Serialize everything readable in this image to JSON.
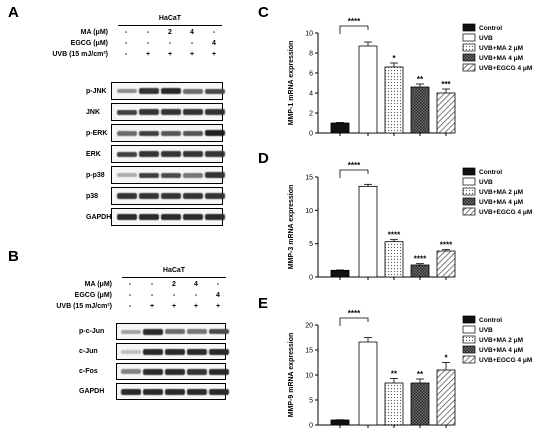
{
  "panels": {
    "A": "A",
    "B": "B",
    "C": "C",
    "D": "D",
    "E": "E"
  },
  "blot_a": {
    "cell_line": "HaCaT",
    "conditions": [
      {
        "label": "MA (μM)",
        "symbols": [
          "-",
          "-",
          "2",
          "4",
          "-"
        ]
      },
      {
        "label": "EGCG (μM)",
        "symbols": [
          "-",
          "-",
          "-",
          "-",
          "4"
        ]
      },
      {
        "label": "UVB (15 mJ/cm²)",
        "symbols": [
          "-",
          "+",
          "+",
          "+",
          "+"
        ]
      }
    ],
    "rows": [
      {
        "label": "p-JNK",
        "intensity": [
          0.45,
          0.85,
          0.9,
          0.6,
          0.75
        ]
      },
      {
        "label": "JNK",
        "intensity": [
          0.8,
          0.85,
          0.85,
          0.85,
          0.85
        ]
      },
      {
        "label": "p-ERK",
        "intensity": [
          0.6,
          0.8,
          0.7,
          0.7,
          0.95
        ]
      },
      {
        "label": "ERK",
        "intensity": [
          0.8,
          0.85,
          0.85,
          0.85,
          0.85
        ]
      },
      {
        "label": "p-p38",
        "intensity": [
          0.3,
          0.8,
          0.75,
          0.55,
          0.85
        ]
      },
      {
        "label": "p38",
        "intensity": [
          0.85,
          0.85,
          0.85,
          0.85,
          0.85
        ]
      },
      {
        "label": "GAPDH",
        "intensity": [
          0.9,
          0.9,
          0.9,
          0.9,
          0.9
        ]
      }
    ]
  },
  "blot_b": {
    "cell_line": "HaCaT",
    "conditions": [
      {
        "label": "MA (μM)",
        "symbols": [
          "-",
          "-",
          "2",
          "4",
          "-"
        ]
      },
      {
        "label": "EGCG (μM)",
        "symbols": [
          "-",
          "-",
          "-",
          "-",
          "4"
        ]
      },
      {
        "label": "UVB (15 mJ/cm²)",
        "symbols": [
          "-",
          "+",
          "+",
          "+",
          "+"
        ]
      }
    ],
    "rows": [
      {
        "label": "p-c-Jun",
        "intensity": [
          0.35,
          0.9,
          0.6,
          0.55,
          0.75
        ]
      },
      {
        "label": "c-Jun",
        "intensity": [
          0.2,
          0.9,
          0.9,
          0.9,
          0.9
        ]
      },
      {
        "label": "c-Fos",
        "intensity": [
          0.5,
          0.9,
          0.9,
          0.85,
          0.9
        ]
      },
      {
        "label": "GAPDH",
        "intensity": [
          0.9,
          0.9,
          0.9,
          0.9,
          0.9
        ]
      }
    ]
  },
  "legend": [
    "Control",
    "UVB",
    "UVB+MA 2 μM",
    "UVB+MA 4 μM",
    "UVB+EGCG 4 μM"
  ],
  "chart_data": [
    {
      "type": "bar",
      "ylabel": "MMP-1 mRNA expression",
      "ylim": [
        0,
        10
      ],
      "yticks": [
        0,
        2,
        4,
        6,
        8,
        10
      ],
      "categories": [
        "Control",
        "UVB",
        "UVB+MA 2 μM",
        "UVB+MA 4 μM",
        "UVB+EGCG 4 μM"
      ],
      "values": [
        1.0,
        8.7,
        6.6,
        4.6,
        4.0
      ],
      "errors": [
        0.05,
        0.4,
        0.4,
        0.3,
        0.4
      ],
      "significance": [
        "",
        "",
        "*",
        "**",
        "***"
      ],
      "bracket_label": "****"
    },
    {
      "type": "bar",
      "ylabel": "MMP-3 mRNA expression",
      "ylim": [
        0,
        15
      ],
      "yticks": [
        0,
        5,
        10,
        15
      ],
      "categories": [
        "Control",
        "UVB",
        "UVB+MA 2 μM",
        "UVB+MA 4 μM",
        "UVB+EGCG 4 μM"
      ],
      "values": [
        1.0,
        13.6,
        5.3,
        1.8,
        3.9
      ],
      "errors": [
        0.05,
        0.3,
        0.3,
        0.2,
        0.2
      ],
      "significance": [
        "",
        "",
        "****",
        "****",
        "****"
      ],
      "bracket_label": "****"
    },
    {
      "type": "bar",
      "ylabel": "MMP-9 mRNA expression",
      "ylim": [
        0,
        20
      ],
      "yticks": [
        0,
        5,
        10,
        15,
        20
      ],
      "categories": [
        "Control",
        "UVB",
        "UVB+MA 2 μM",
        "UVB+MA 4 μM",
        "UVB+EGCG 4 μM"
      ],
      "values": [
        1.0,
        16.6,
        8.4,
        8.4,
        11.0
      ],
      "errors": [
        0.05,
        0.9,
        0.9,
        0.8,
        1.5
      ],
      "significance": [
        "",
        "",
        "**",
        "**",
        "*"
      ],
      "bracket_label": "****"
    }
  ]
}
